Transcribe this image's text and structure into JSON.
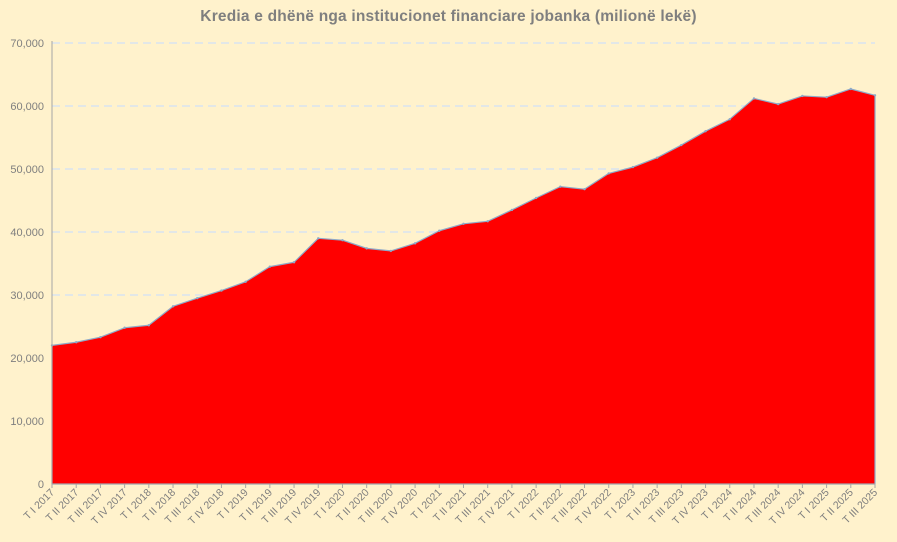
{
  "chart_data": {
    "type": "area",
    "title": "Kredia e dhënë nga institucionet financiare jobanka (milionë lekë)",
    "xlabel": "",
    "ylabel": "",
    "ylim": [
      0,
      70000
    ],
    "yticks": [
      "0",
      "10,000",
      "20,000",
      "30,000",
      "40,000",
      "50,000",
      "60,000",
      "70,000"
    ],
    "grid": true,
    "legend": "none",
    "colors": {
      "fill": "#FF0000",
      "outline": "#8EA9C8",
      "grid": "#D9E3F0",
      "axis": "#A6A6A6",
      "text": "#7F7F7F",
      "background": "#FFF2CC"
    },
    "categories": [
      "T I 2017",
      "T II 2017",
      "T III 2017",
      "T IV 2017",
      "T I 2018",
      "T II 2018",
      "T III 2018",
      "T IV 2018",
      "T I 2019",
      "T II 2019",
      "T III 2019",
      "T IV 2019",
      "T I 2020",
      "T II 2020",
      "T III 2020",
      "T IV 2020",
      "T I 2021",
      "T II 2021",
      "T III 2021",
      "T IV 2021",
      "T I 2022",
      "T II 2022",
      "T III 2022",
      "T IV 2022",
      "T I 2023",
      "T II 2023",
      "T III 2023",
      "T IV 2023",
      "T I 2024",
      "T II 2024",
      "T III 2024",
      "T IV 2024",
      "T I 2025",
      "T II 2025",
      "T III 2025"
    ],
    "values": [
      22000,
      22500,
      23300,
      24800,
      25200,
      28200,
      29500,
      30700,
      32100,
      34500,
      35200,
      39000,
      38700,
      37400,
      37000,
      38200,
      40200,
      41300,
      41700,
      43500,
      45400,
      47200,
      46800,
      49300,
      50300,
      51800,
      53800,
      56000,
      57900,
      61200,
      60300,
      61600,
      61400,
      62700,
      61700
    ]
  }
}
